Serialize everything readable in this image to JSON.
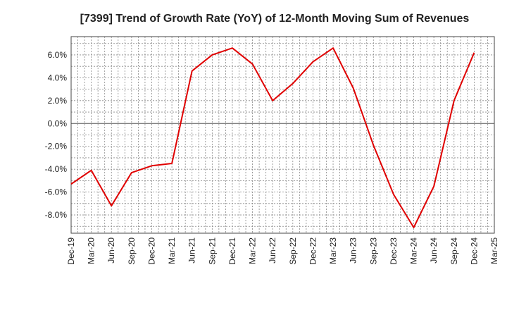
{
  "chart_data": {
    "type": "line",
    "title": "[7399]  Trend of Growth Rate (YoY) of 12-Month Moving Sum of Revenues",
    "xlabel": "",
    "ylabel": "",
    "ylim": [
      -9.6,
      7.6
    ],
    "y_ticks": [
      "6.0%",
      "4.0%",
      "2.0%",
      "0.0%",
      "-2.0%",
      "-4.0%",
      "-6.0%",
      "-8.0%"
    ],
    "y_tick_values": [
      6,
      4,
      2,
      0,
      -2,
      -4,
      -6,
      -8
    ],
    "x_ticks": [
      "Dec-19",
      "Mar-20",
      "Jun-20",
      "Sep-20",
      "Dec-20",
      "Mar-21",
      "Jun-21",
      "Sep-21",
      "Dec-21",
      "Mar-22",
      "Jun-22",
      "Sep-22",
      "Dec-22",
      "Mar-23",
      "Jun-23",
      "Sep-23",
      "Dec-23",
      "Mar-24",
      "Jun-24",
      "Sep-24",
      "Dec-24",
      "Mar-25"
    ],
    "grid": true,
    "series": [
      {
        "color": "#e00000",
        "x": [
          "Dec-19",
          "Mar-20",
          "Jun-20",
          "Sep-20",
          "Dec-20",
          "Mar-21",
          "Jun-21",
          "Sep-21",
          "Dec-21",
          "Mar-22",
          "Jun-22",
          "Sep-22",
          "Dec-22",
          "Mar-23",
          "Jun-23",
          "Sep-23",
          "Dec-23",
          "Mar-24",
          "Jun-24",
          "Sep-24",
          "Dec-24"
        ],
        "values": [
          -5.3,
          -4.1,
          -7.2,
          -4.3,
          -3.7,
          -3.5,
          4.6,
          6.0,
          6.6,
          5.2,
          2.0,
          3.5,
          5.4,
          6.6,
          3.1,
          -1.9,
          -6.2,
          -9.1,
          -5.5,
          2.0,
          6.2
        ]
      }
    ]
  }
}
